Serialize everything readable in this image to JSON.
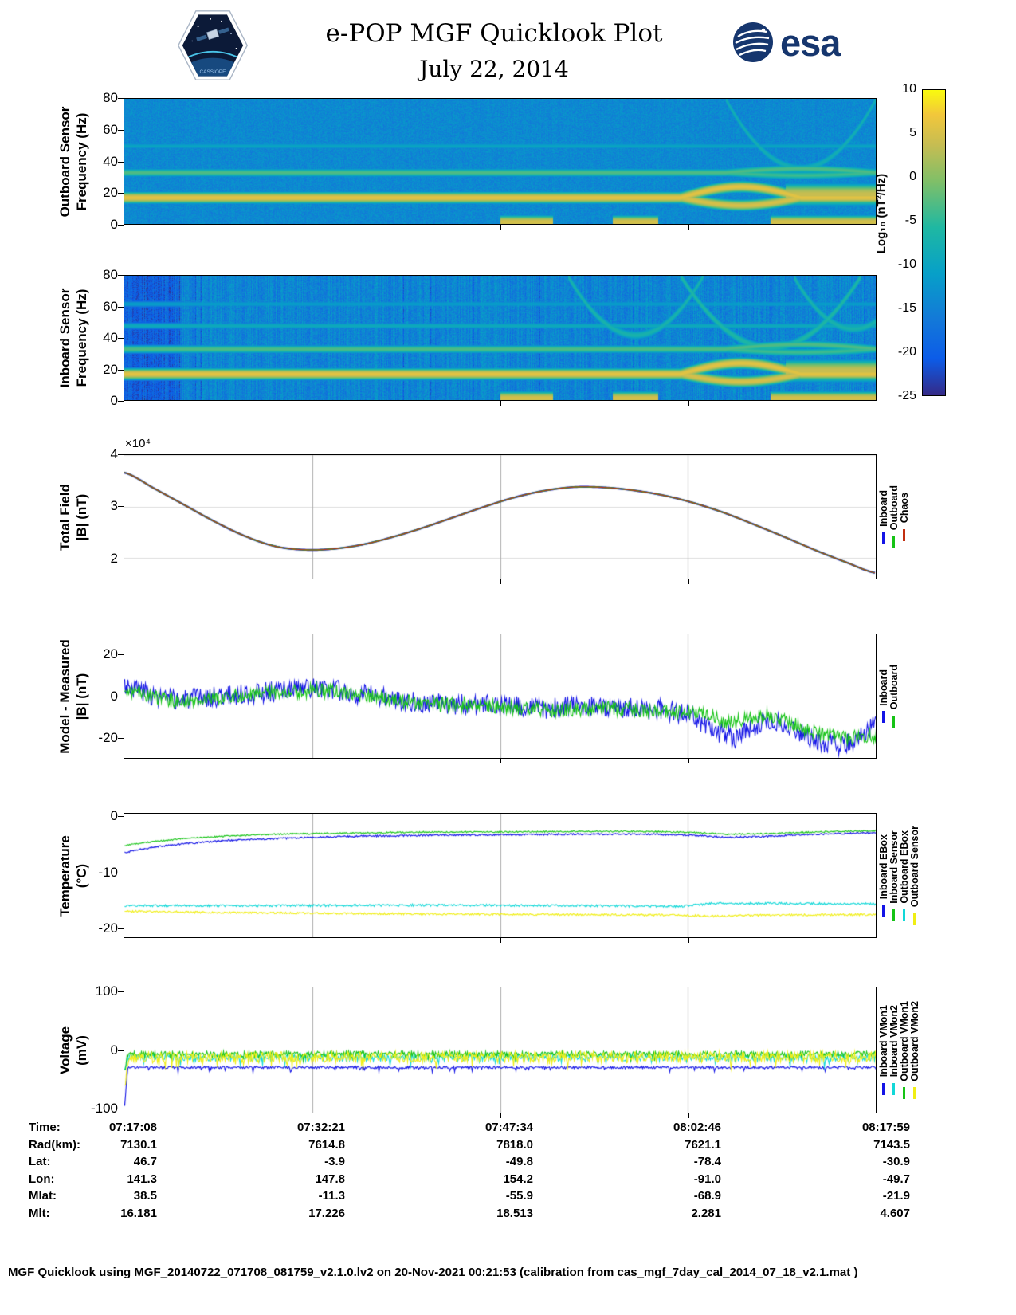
{
  "header": {
    "title": "e-POP MGF Quicklook Plot",
    "subtitle": "July 22, 2014",
    "mission_logo_text": "CASSIOPE",
    "esa_logo_text": "esa"
  },
  "colorbar": {
    "label": "Log₁₀ (nT²/Hz)",
    "range": [
      -25,
      10
    ],
    "ticks": [
      10,
      5,
      0,
      -5,
      -10,
      -15,
      -20,
      -25
    ]
  },
  "chart_data": [
    {
      "id": "outboard-spectrogram",
      "type": "heatmap",
      "ylabel": "Outboard Sensor\nFrequency (Hz)",
      "ylim": [
        0,
        80
      ],
      "yticks": [
        0,
        20,
        40,
        60,
        80
      ],
      "value_range": [
        -25,
        10
      ],
      "background_level": -14,
      "noise_amplitude": 2.2,
      "stripe_amplitude": 0.5,
      "stripe_prob": 0,
      "stripe_depth": 0,
      "seed": 11,
      "lines": [
        {
          "freq": 17,
          "level": 6,
          "width": 1.3,
          "wobble": {
            "start": 0.74,
            "end": 0.9,
            "amplitude": 7
          }
        },
        {
          "freq": 33,
          "level": -3,
          "width": 1.1,
          "wobble": {
            "start": 0.8,
            "end": 1.0,
            "amplitude": 2.5
          }
        },
        {
          "freq": 50,
          "level": -10,
          "width": 1.0
        },
        {
          "freq": 1.5,
          "level": 5,
          "width": 1.5,
          "patches": [
            [
              0.5,
              0.57
            ],
            [
              0.65,
              0.71
            ],
            [
              0.86,
              1.0
            ]
          ]
        },
        {
          "freq": 19,
          "level": 4,
          "width": 2.5,
          "patches": [
            [
              0.88,
              1.0
            ]
          ]
        }
      ],
      "arcs": [
        {
          "center": 0.9,
          "halfwidth": 0.1,
          "fmin": 36,
          "level": -8,
          "width": 1.4
        }
      ]
    },
    {
      "id": "inboard-spectrogram",
      "type": "heatmap",
      "ylabel": "Inboard Sensor\nFrequency (Hz)",
      "ylim": [
        0,
        80
      ],
      "yticks": [
        0,
        20,
        40,
        60,
        80
      ],
      "value_range": [
        -25,
        10
      ],
      "background_level": -14.5,
      "noise_amplitude": 2.6,
      "stripe_amplitude": 2.2,
      "stripe_prob": 0.05,
      "stripe_depth": 5,
      "left_dark_until": 0.075,
      "seed": 29,
      "lines": [
        {
          "freq": 17,
          "level": 6,
          "width": 1.3,
          "wobble": {
            "start": 0.74,
            "end": 0.9,
            "amplitude": 7
          }
        },
        {
          "freq": 33,
          "level": -3,
          "width": 1.1,
          "wobble": {
            "start": 0.8,
            "end": 1.0,
            "amplitude": 3
          }
        },
        {
          "freq": 48,
          "level": -9,
          "width": 1.0
        },
        {
          "freq": 62,
          "level": -11,
          "width": 1.0
        },
        {
          "freq": 1.5,
          "level": 5,
          "width": 1.5,
          "patches": [
            [
              0.5,
              0.57
            ],
            [
              0.65,
              0.71
            ],
            [
              0.86,
              1.0
            ]
          ]
        },
        {
          "freq": 19,
          "level": 4,
          "width": 2.5,
          "patches": [
            [
              0.88,
              1.0
            ]
          ]
        }
      ],
      "arcs": [
        {
          "center": 0.68,
          "halfwidth": 0.09,
          "fmin": 42,
          "level": -7,
          "width": 1.4
        },
        {
          "center": 0.86,
          "halfwidth": 0.12,
          "fmin": 34,
          "level": -6,
          "width": 1.4
        },
        {
          "center": 0.97,
          "halfwidth": 0.08,
          "fmin": 46,
          "level": -7,
          "width": 1.4
        }
      ]
    },
    {
      "id": "total-field",
      "type": "line",
      "ylabel": "Total Field\n|B| (nT)",
      "ylim": [
        16000,
        40000
      ],
      "yticks": [
        20000,
        30000,
        40000
      ],
      "ytick_labels": [
        "2",
        "3",
        "4"
      ],
      "y_multiplier_label": "×10⁴",
      "grid_vertical": [
        0.25,
        0.5,
        0.75
      ],
      "grid_horizontal": [
        20000,
        30000,
        40000
      ],
      "x": [
        0,
        0.04,
        0.08,
        0.12,
        0.16,
        0.2,
        0.24,
        0.28,
        0.32,
        0.36,
        0.4,
        0.44,
        0.48,
        0.52,
        0.56,
        0.6,
        0.64,
        0.68,
        0.72,
        0.76,
        0.8,
        0.84,
        0.88,
        0.92,
        0.96,
        1
      ],
      "values": [
        36600,
        33500,
        30300,
        27100,
        24300,
        22300,
        21600,
        21800,
        22700,
        24200,
        26000,
        28000,
        30000,
        31800,
        33100,
        33800,
        33700,
        33100,
        32100,
        30600,
        28700,
        26400,
        24000,
        21500,
        19200,
        17100
      ],
      "series": [
        {
          "name": "Inboard",
          "color": "#1414e6"
        },
        {
          "name": "Outboard",
          "color": "#16c316"
        },
        {
          "name": "Chaos",
          "color": "#c22f10"
        }
      ],
      "note": "Inboard, Outboard and Chaos model curves overlap"
    },
    {
      "id": "model-minus-measured",
      "type": "line",
      "ylabel": "Model - Measured\n|B| (nT)",
      "ylim": [
        -30,
        30
      ],
      "yticks": [
        -20,
        0,
        20
      ],
      "grid_vertical": [
        0.25,
        0.5,
        0.75
      ],
      "seed": 3,
      "series": [
        {
          "name": "Inboard",
          "color": "#1414e6",
          "noise": 5,
          "points": [
            [
              0,
              6
            ],
            [
              0.02,
              3
            ],
            [
              0.04,
              0
            ],
            [
              0.07,
              -2
            ],
            [
              0.1,
              -1
            ],
            [
              0.13,
              0
            ],
            [
              0.16,
              1
            ],
            [
              0.19,
              2
            ],
            [
              0.22,
              3
            ],
            [
              0.25,
              4
            ],
            [
              0.28,
              3
            ],
            [
              0.31,
              1
            ],
            [
              0.34,
              0
            ],
            [
              0.37,
              -2
            ],
            [
              0.4,
              -3
            ],
            [
              0.44,
              -4
            ],
            [
              0.48,
              -4
            ],
            [
              0.52,
              -5
            ],
            [
              0.56,
              -6
            ],
            [
              0.6,
              -5
            ],
            [
              0.64,
              -5
            ],
            [
              0.68,
              -6
            ],
            [
              0.72,
              -7
            ],
            [
              0.75,
              -9
            ],
            [
              0.77,
              -13
            ],
            [
              0.79,
              -18
            ],
            [
              0.81,
              -21
            ],
            [
              0.83,
              -17
            ],
            [
              0.85,
              -12
            ],
            [
              0.87,
              -12
            ],
            [
              0.89,
              -16
            ],
            [
              0.91,
              -20
            ],
            [
              0.93,
              -23
            ],
            [
              0.95,
              -24
            ],
            [
              0.97,
              -22
            ],
            [
              0.99,
              -17
            ],
            [
              1,
              -13
            ]
          ]
        },
        {
          "name": "Outboard",
          "color": "#16c316",
          "noise": 3.5,
          "points": [
            [
              0,
              3
            ],
            [
              0.03,
              0
            ],
            [
              0.06,
              -2
            ],
            [
              0.1,
              -2
            ],
            [
              0.14,
              0
            ],
            [
              0.18,
              1
            ],
            [
              0.22,
              2
            ],
            [
              0.26,
              3
            ],
            [
              0.3,
              1
            ],
            [
              0.34,
              -1
            ],
            [
              0.38,
              -3
            ],
            [
              0.42,
              -4
            ],
            [
              0.46,
              -4
            ],
            [
              0.5,
              -5
            ],
            [
              0.54,
              -6
            ],
            [
              0.58,
              -7
            ],
            [
              0.62,
              -6
            ],
            [
              0.66,
              -6
            ],
            [
              0.7,
              -7
            ],
            [
              0.74,
              -8
            ],
            [
              0.78,
              -10
            ],
            [
              0.8,
              -13
            ],
            [
              0.82,
              -12
            ],
            [
              0.85,
              -9
            ],
            [
              0.88,
              -12
            ],
            [
              0.9,
              -15
            ],
            [
              0.92,
              -18
            ],
            [
              0.95,
              -20
            ],
            [
              0.98,
              -20
            ],
            [
              1,
              -19
            ]
          ]
        }
      ]
    },
    {
      "id": "temperature",
      "type": "line",
      "ylabel": "Temperature\n(°C)",
      "ylim": [
        -21.7,
        0.6
      ],
      "yticks": [
        -20,
        -10,
        0
      ],
      "grid_vertical": [
        0.25,
        0.5,
        0.75
      ],
      "seed": 4,
      "series": [
        {
          "name": "Inboard EBox",
          "color": "#1414e6",
          "noise": 0.15,
          "points": [
            [
              0,
              -6.4
            ],
            [
              0.04,
              -5.4
            ],
            [
              0.08,
              -4.8
            ],
            [
              0.14,
              -4.2
            ],
            [
              0.2,
              -3.9
            ],
            [
              0.3,
              -3.5
            ],
            [
              0.4,
              -3.3
            ],
            [
              0.5,
              -3.2
            ],
            [
              0.6,
              -3.1
            ],
            [
              0.7,
              -3.1
            ],
            [
              0.76,
              -3.3
            ],
            [
              0.8,
              -3.7
            ],
            [
              0.85,
              -3.5
            ],
            [
              0.9,
              -3.2
            ],
            [
              0.95,
              -3
            ],
            [
              1,
              -2.8
            ]
          ]
        },
        {
          "name": "Inboard Sensor",
          "color": "#16c316",
          "noise": 0.12,
          "points": [
            [
              0,
              -5.1
            ],
            [
              0.04,
              -4.4
            ],
            [
              0.08,
              -3.9
            ],
            [
              0.14,
              -3.4
            ],
            [
              0.2,
              -3.1
            ],
            [
              0.3,
              -2.9
            ],
            [
              0.4,
              -2.7
            ],
            [
              0.5,
              -2.7
            ],
            [
              0.6,
              -2.6
            ],
            [
              0.7,
              -2.6
            ],
            [
              0.76,
              -2.8
            ],
            [
              0.8,
              -3.1
            ],
            [
              0.85,
              -3
            ],
            [
              0.9,
              -2.8
            ],
            [
              0.95,
              -2.6
            ],
            [
              1,
              -2.5
            ]
          ]
        },
        {
          "name": "Outboard EBox",
          "color": "#12d8d8",
          "noise": 0.2,
          "points": [
            [
              0,
              -16
            ],
            [
              0.2,
              -16
            ],
            [
              0.4,
              -15.9
            ],
            [
              0.6,
              -16
            ],
            [
              0.74,
              -16.1
            ],
            [
              0.78,
              -15.6
            ],
            [
              0.9,
              -15.6
            ],
            [
              1,
              -15.7
            ]
          ]
        },
        {
          "name": "Outboard Sensor",
          "color": "#f0ee14",
          "noise": 0.18,
          "points": [
            [
              0,
              -17
            ],
            [
              0.1,
              -17.2
            ],
            [
              0.2,
              -17.3
            ],
            [
              0.4,
              -17.5
            ],
            [
              0.6,
              -17.6
            ],
            [
              0.74,
              -17.7
            ],
            [
              0.78,
              -17.9
            ],
            [
              0.85,
              -17.7
            ],
            [
              1,
              -17.6
            ]
          ]
        }
      ]
    },
    {
      "id": "voltage",
      "type": "line",
      "ylabel": "Voltage\n(mV)",
      "ylim": [
        -108,
        108
      ],
      "yticks": [
        -100,
        0,
        100
      ],
      "grid_vertical": [
        0.25,
        0.5,
        0.75
      ],
      "seed": 9,
      "series": [
        {
          "name": "Inboard VMon1",
          "color": "#1414e6",
          "noise": 2,
          "spike_prob": 0.06,
          "spike_depth": 8,
          "points": [
            [
              0,
              -95
            ],
            [
              0.004,
              -30
            ],
            [
              1,
              -30
            ]
          ]
        },
        {
          "name": "Inboard VMon2",
          "color": "#12d8d8",
          "noise": 6,
          "spike_prob": 0.1,
          "spike_depth": 12,
          "points": [
            [
              0,
              -40
            ],
            [
              0.004,
              -13
            ],
            [
              1,
              -13
            ]
          ]
        },
        {
          "name": "Outboard VMon1",
          "color": "#16c316",
          "noise": 5,
          "spike_prob": 0.06,
          "spike_depth": 10,
          "points": [
            [
              0,
              -30
            ],
            [
              0.004,
              -7
            ],
            [
              1,
              -7
            ]
          ]
        },
        {
          "name": "Outboard VMon2",
          "color": "#f0ee14",
          "noise": 9,
          "spike_prob": 0.12,
          "spike_depth": 14,
          "points": [
            [
              0,
              -60
            ],
            [
              0.006,
              -12
            ],
            [
              1,
              -12
            ]
          ]
        }
      ]
    }
  ],
  "ephemeris_table": {
    "rows": [
      {
        "label": "Time:",
        "values": [
          "07:17:08",
          "07:32:21",
          "07:47:34",
          "08:02:46",
          "08:17:59"
        ]
      },
      {
        "label": "Rad(km):",
        "values": [
          "7130.1",
          "7614.8",
          "7818.0",
          "7621.1",
          "7143.5"
        ]
      },
      {
        "label": "Lat:",
        "values": [
          "46.7",
          "-3.9",
          "-49.8",
          "-78.4",
          "-30.9"
        ]
      },
      {
        "label": "Lon:",
        "values": [
          "141.3",
          "147.8",
          "154.2",
          "-91.0",
          "-49.7"
        ]
      },
      {
        "label": "Mlat:",
        "values": [
          "38.5",
          "-11.3",
          "-55.9",
          "-68.9",
          "-21.9"
        ]
      },
      {
        "label": "Mlt:",
        "values": [
          "16.181",
          "17.226",
          "18.513",
          "2.281",
          "4.607"
        ]
      }
    ]
  },
  "footer": "MGF Quicklook using MGF_20140722_071708_081759_v2.1.0.lv2 on 20-Nov-2021 00:21:53 (calibration from cas_mgf_7day_cal_2014_07_18_v2.1.mat )"
}
